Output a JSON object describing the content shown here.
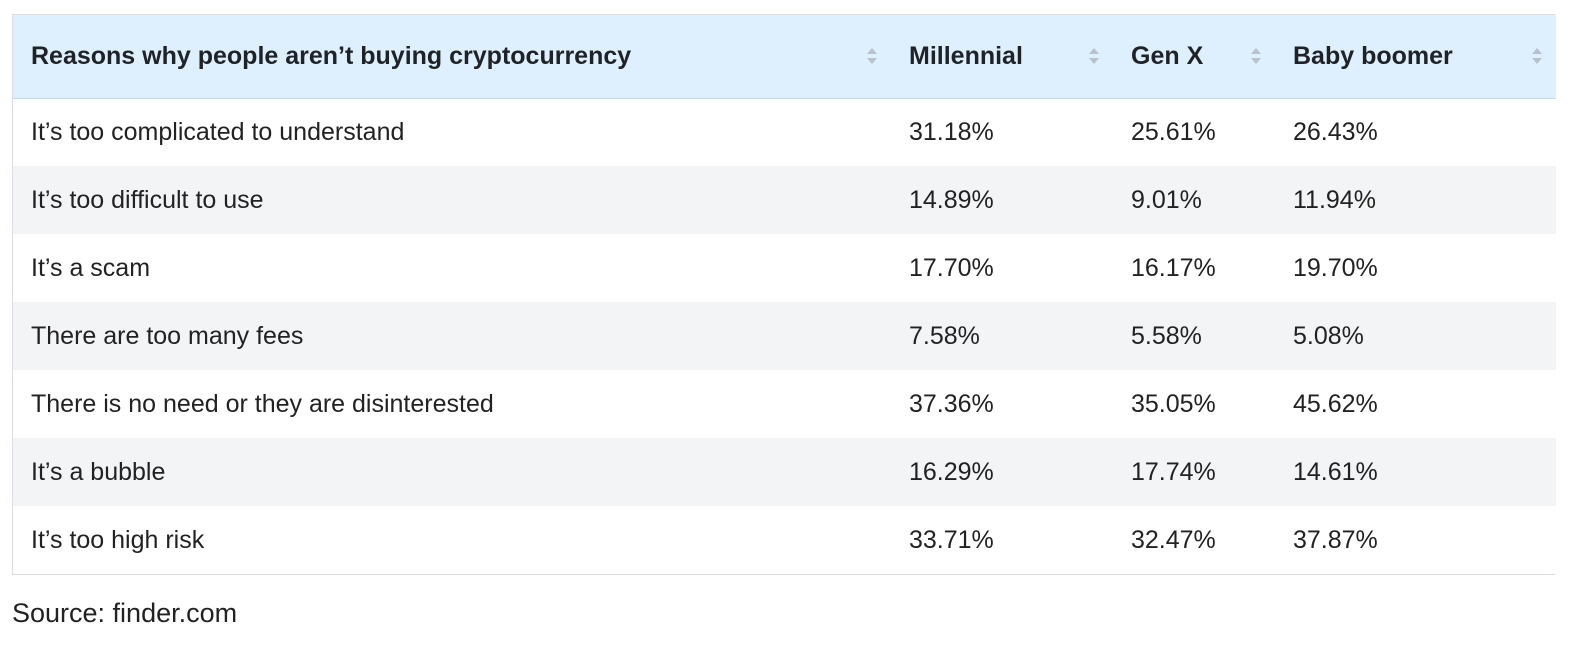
{
  "table": {
    "headers": [
      "Reasons why people aren’t buying cryptocurrency",
      "Millennial",
      "Gen X",
      "Baby boomer"
    ],
    "rows": [
      [
        "It’s too complicated to understand",
        "31.18%",
        "25.61%",
        "26.43%"
      ],
      [
        "It’s too difficult to use",
        "14.89%",
        "9.01%",
        "11.94%"
      ],
      [
        "It’s a scam",
        "17.70%",
        "16.17%",
        "19.70%"
      ],
      [
        "There are too many fees",
        "7.58%",
        "5.58%",
        "5.08%"
      ],
      [
        "There is no need or they are disinterested",
        "37.36%",
        "35.05%",
        "45.62%"
      ],
      [
        "It’s a bubble",
        "16.29%",
        "17.74%",
        "14.61%"
      ],
      [
        "It’s too high risk",
        "33.71%",
        "32.47%",
        "37.87%"
      ]
    ]
  },
  "source": "Source: finder.com",
  "icons": {
    "sort": "sort-icon"
  },
  "colors": {
    "header_bg": "#def0fd",
    "stripe_bg": "#f3f4f6",
    "border": "#d9dde2"
  }
}
